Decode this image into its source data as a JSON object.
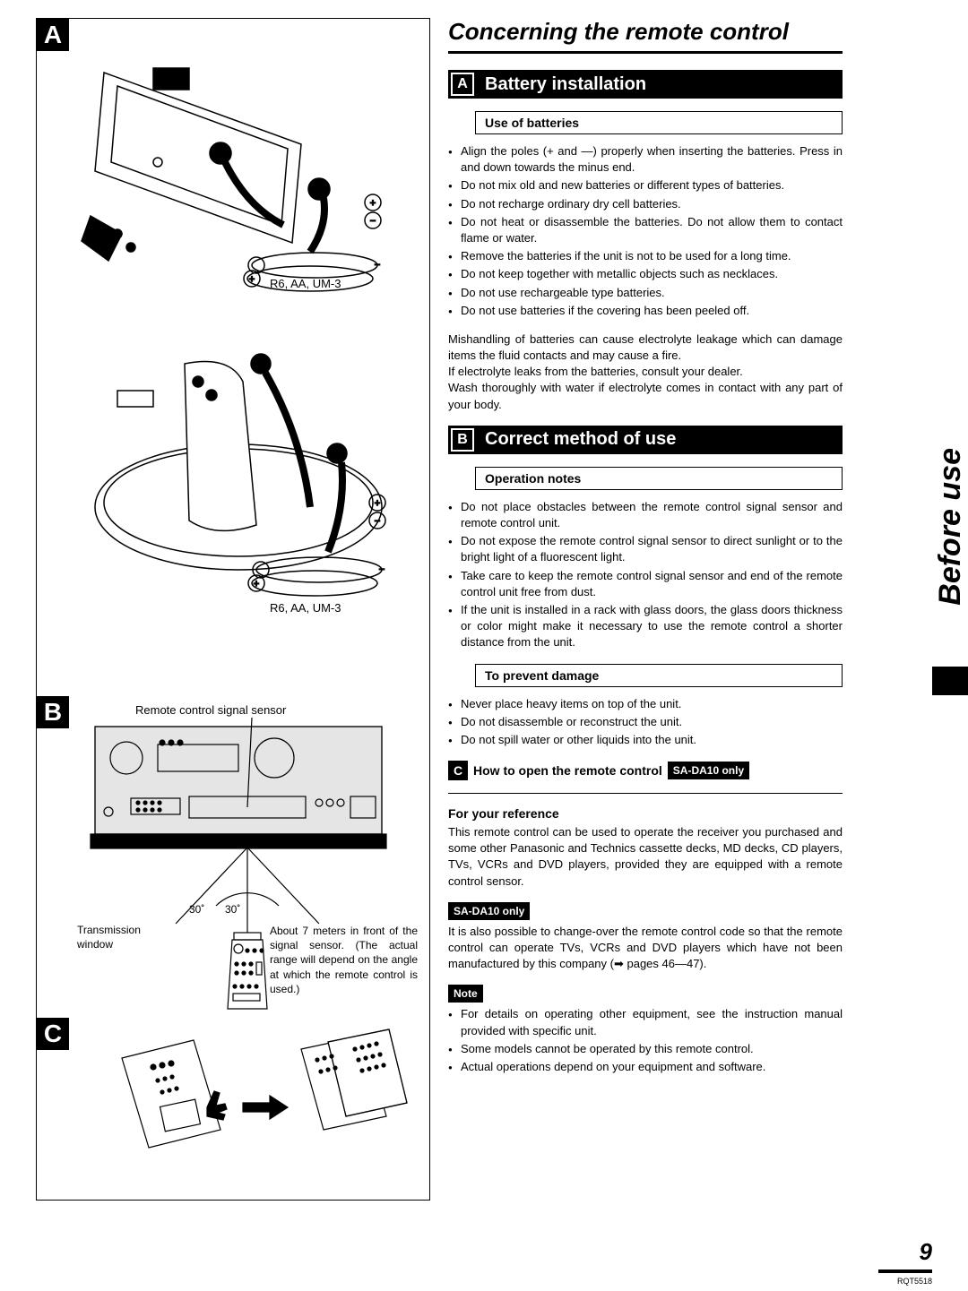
{
  "left": {
    "letterA": "A",
    "letterB": "B",
    "letterC": "C",
    "batteryLabel1": "R6, AA, UM-3",
    "batteryLabel2": "R6, AA, UM-3",
    "sensorLabel": "Remote control signal sensor",
    "transmissionLabel": "Transmission window",
    "angleLeft": "30˚",
    "angleRight": "30˚",
    "rangeText": "About 7 meters in front of the signal sensor. (The actual range will depend on the angle at which the remote control is used.)"
  },
  "right": {
    "pageTitle": "Concerning the remote control",
    "secA": {
      "letter": "A",
      "title": "Battery installation"
    },
    "useOfBatteries": "Use of batteries",
    "batteryList": [
      "Align the poles (+ and —) properly when inserting the batteries. Press in and down towards the minus end.",
      "Do not mix old and new batteries or different types of batteries.",
      "Do not recharge ordinary dry cell batteries.",
      "Do not heat or disassemble the batteries. Do not allow them to contact flame or water.",
      "Remove the batteries if the unit is not to be used for a long time.",
      "Do not keep together with metallic objects such as necklaces.",
      "Do not use rechargeable type batteries.",
      "Do not use batteries if the covering has been peeled off."
    ],
    "batteryPara": "Mishandling of batteries can cause electrolyte leakage which can damage items the fluid contacts and may cause a fire.\nIf electrolyte leaks from the batteries, consult your dealer.\nWash thoroughly with water if electrolyte comes in contact with any part of your body.",
    "secB": {
      "letter": "B",
      "title": "Correct method of use"
    },
    "opNotes": "Operation notes",
    "opList": [
      "Do not place obstacles between the remote control signal sensor and remote control unit.",
      "Do not expose the remote control signal sensor to direct sunlight or to the bright light of a fluorescent light.",
      "Take care to keep the remote control signal sensor and end of the remote control unit free from dust.",
      "If the unit is installed in a rack with glass doors, the glass doors thickness or color might make it necessary to use the remote control a shorter distance from the unit."
    ],
    "preventDamage": "To prevent damage",
    "preventList": [
      "Never place heavy items on top of the unit.",
      "Do not disassemble or reconstruct the unit.",
      "Do not spill water or other liquids into the unit."
    ],
    "secC": {
      "letter": "C",
      "title": "How to open the remote control",
      "badge": "SA-DA10 only"
    },
    "refTitle": "For your reference",
    "refPara": "This remote control can be used to operate the receiver you purchased and some other Panasonic and Technics cassette decks, MD decks, CD players, TVs, VCRs and DVD players, provided they are equipped with a remote control sensor.",
    "sada10Badge": "SA-DA10 only",
    "sada10Para": "It is also possible to change-over the remote control code so that the remote control can operate TVs, VCRs and DVD players which have not been manufactured by this company (➡ pages 46—47).",
    "noteBadge": "Note",
    "noteList": [
      "For details on operating other equipment, see the instruction manual provided with specific unit.",
      "Some models cannot be operated by this remote control.",
      "Actual operations depend on your equipment and software."
    ]
  },
  "sideTab": "Before use",
  "pageNumber": "9",
  "docCode": "RQT5518"
}
